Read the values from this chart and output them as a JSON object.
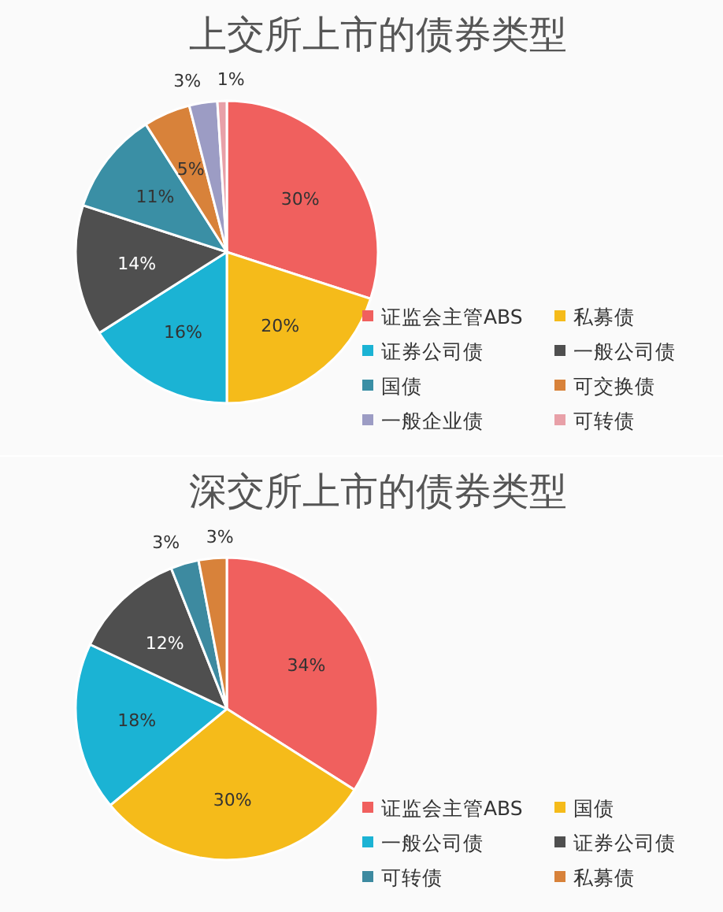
{
  "chart_data": [
    {
      "type": "pie",
      "title": "上交所上市的债券类型",
      "categories": [
        "证监会主管ABS",
        "私募债",
        "证券公司债",
        "一般公司债",
        "国债",
        "可交换债",
        "一般企业债",
        "可转债"
      ],
      "values": [
        30,
        20,
        16,
        14,
        11,
        5,
        3,
        1
      ],
      "colors": [
        "#f0605e",
        "#f5bb1a",
        "#1bb3d4",
        "#4f4f4f",
        "#3a8fa5",
        "#d8823a",
        "#9c9cc4",
        "#e8a0a8"
      ],
      "value_labels": [
        "30%",
        "20%",
        "16%",
        "14%",
        "11%",
        "5%",
        "3%",
        "1%"
      ],
      "legend": "bottom right"
    },
    {
      "type": "pie",
      "title": "深交所上市的债券类型",
      "categories": [
        "证监会主管ABS",
        "国债",
        "一般公司债",
        "证券公司债",
        "可转债",
        "私募债"
      ],
      "values": [
        34,
        30,
        18,
        12,
        3,
        3
      ],
      "colors": [
        "#f0605e",
        "#f5bb1a",
        "#1bb3d4",
        "#4f4f4f",
        "#3d8aa0",
        "#d8823a"
      ],
      "value_labels": [
        "34%",
        "30%",
        "18%",
        "12%",
        "3%",
        "3%"
      ],
      "legend": "bottom right"
    }
  ]
}
